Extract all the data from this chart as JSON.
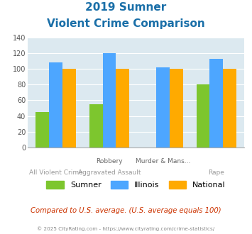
{
  "title_line1": "2019 Sumner",
  "title_line2": "Violent Crime Comparison",
  "cat_labels_top": [
    "",
    "Robbery",
    "Murder & Mans...",
    ""
  ],
  "cat_labels_bot": [
    "All Violent Crime",
    "Aggravated Assault",
    "",
    "Rape"
  ],
  "groups": {
    "Sumner": [
      45,
      55,
      0,
      80
    ],
    "Illinois": [
      108,
      120,
      102,
      113
    ],
    "National": [
      100,
      100,
      100,
      100
    ]
  },
  "colors": {
    "Sumner": "#7dc62e",
    "Illinois": "#4da6ff",
    "National": "#ffaa00"
  },
  "ylim": [
    0,
    140
  ],
  "yticks": [
    0,
    20,
    40,
    60,
    80,
    100,
    120,
    140
  ],
  "plot_bg": "#dce9f0",
  "title_color": "#1a6fa8",
  "footer_text": "Compared to U.S. average. (U.S. average equals 100)",
  "footer_color": "#cc3300",
  "copyright_text": "© 2025 CityRating.com - https://www.cityrating.com/crime-statistics/",
  "copyright_color": "#888888",
  "legend_labels": [
    "Sumner",
    "Illinois",
    "National"
  ]
}
